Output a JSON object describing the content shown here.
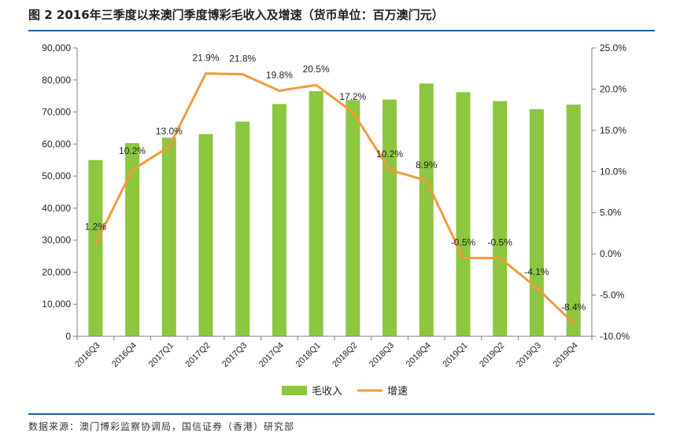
{
  "header": {
    "title": "图 2  2016年三季度以来澳门季度博彩毛收入及增速（货币单位：百万澳门元）"
  },
  "footer": {
    "source": "数据来源：澳门博彩监察协调局，国信证券（香港）研究部"
  },
  "colors": {
    "bar": "#8dc63f",
    "line": "#f39a3c",
    "rule": "#1f5fa0"
  },
  "chart_data": {
    "type": "bar",
    "categories": [
      "2016Q3",
      "2016Q4",
      "2017Q1",
      "2017Q2",
      "2017Q3",
      "2017Q4",
      "2018Q1",
      "2018Q2",
      "2018Q3",
      "2018Q4",
      "2019Q1",
      "2019Q2",
      "2019Q3",
      "2019Q4"
    ],
    "series": [
      {
        "name": "毛收入",
        "type": "bar",
        "axis": "left",
        "values": [
          55000,
          60300,
          62000,
          63100,
          67000,
          72500,
          76500,
          73700,
          73900,
          78900,
          76200,
          73400,
          70900,
          72300
        ]
      },
      {
        "name": "增速",
        "type": "line",
        "axis": "right",
        "values": [
          1.2,
          10.2,
          13.0,
          21.9,
          21.8,
          19.8,
          20.5,
          17.2,
          10.2,
          8.9,
          -0.5,
          -0.5,
          -4.1,
          -8.4
        ],
        "labels": [
          "1.2%",
          "10.2%",
          "13.0%",
          "21.9%",
          "21.8%",
          "19.8%",
          "20.5%",
          "17.2%",
          "10.2%",
          "8.9%",
          "-0.5%",
          "-0.5%",
          "-4.1%",
          "-8.4%"
        ]
      }
    ],
    "y_left": {
      "ylim": [
        0,
        90000
      ],
      "ticks": [
        0,
        10000,
        20000,
        30000,
        40000,
        50000,
        60000,
        70000,
        80000,
        90000
      ],
      "tick_labels": [
        "0",
        "10,000",
        "20,000",
        "30,000",
        "40,000",
        "50,000",
        "60,000",
        "70,000",
        "80,000",
        "90,000"
      ]
    },
    "y_right": {
      "ylim": [
        -10,
        25
      ],
      "ticks": [
        -10,
        -5,
        0,
        5,
        10,
        15,
        20,
        25
      ],
      "tick_labels": [
        "-10.0%",
        "-5.0%",
        "0.0%",
        "5.0%",
        "10.0%",
        "15.0%",
        "20.0%",
        "25.0%"
      ]
    },
    "grid": false,
    "legend": "bottom-center"
  }
}
